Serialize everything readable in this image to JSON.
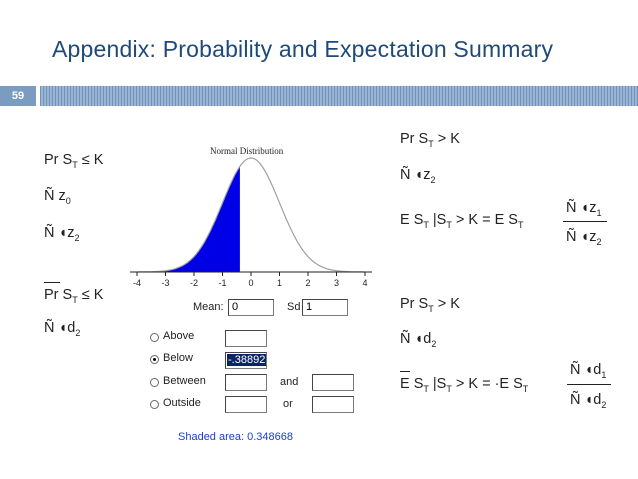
{
  "slide": {
    "title": "Appendix: Probability and Expectation Summary",
    "number": "59"
  },
  "left_equations": {
    "eq1": "Pr S",
    "eq1_sub": "T",
    "eq1_rest": "≤ K",
    "eq2": "Ñ z",
    "eq2_sub": "0",
    "eq3": "Ñ ◖z",
    "eq3_sub": "2",
    "eq4": "Pr S",
    "eq4_sub": "T",
    "eq4_rest": "≤ K",
    "eq5": "Ñ ◖d",
    "eq5_sub": "2"
  },
  "right_equations": {
    "eq1": "Pr  S",
    "eq1_sub": "T",
    "eq1_rest": "> K",
    "eq2": "Ñ ◖z",
    "eq2_sub": "2",
    "eq3": "E S",
    "eq3_sub": "T",
    "eq3_mid": "|S",
    "eq3_mid_sub": "T",
    "eq3_rest": "> K  = E S",
    "eq3_rest_sub": "T",
    "eq3_num": "Ñ ◖z",
    "eq3_num_sub": "1",
    "eq3_den": "Ñ ◖z",
    "eq3_den_sub": "2",
    "eq4": "Pr  S",
    "eq4_sub": "T",
    "eq4_rest": "> K",
    "eq5": "Ñ ◖d",
    "eq5_sub": "2",
    "eq6": "E  S",
    "eq6_sub": "T",
    "eq6_mid": "|S",
    "eq6_mid_sub": "T",
    "eq6_rest": "> K  = ·E  S",
    "eq6_rest_sub": "T",
    "eq6_num": "Ñ ◖d",
    "eq6_num_sub": "1",
    "eq6_den": "Ñ ◖d",
    "eq6_den_sub": "2"
  },
  "applet": {
    "plot_title": "Normal Distribution",
    "x_ticks": [
      "-4",
      "-3",
      "-2",
      "-1",
      "0",
      "1",
      "2",
      "3",
      "4"
    ],
    "mean_label": "Mean:",
    "mean_value": "0",
    "sd_label": "Sd",
    "sd_value": "1",
    "options": [
      {
        "label": "Above",
        "selected": false
      },
      {
        "label": "Below",
        "selected": true
      },
      {
        "label": "Between",
        "selected": false
      },
      {
        "label": "Outside",
        "selected": false
      }
    ],
    "below_value": "-.38892",
    "and_label": "and",
    "or_label": "or",
    "shaded_area_text": "Shaded area: 0.348668",
    "shade_upper_bound": -0.38892,
    "curve_color": "#a0a0a0",
    "shade_color": "#0000e6"
  }
}
